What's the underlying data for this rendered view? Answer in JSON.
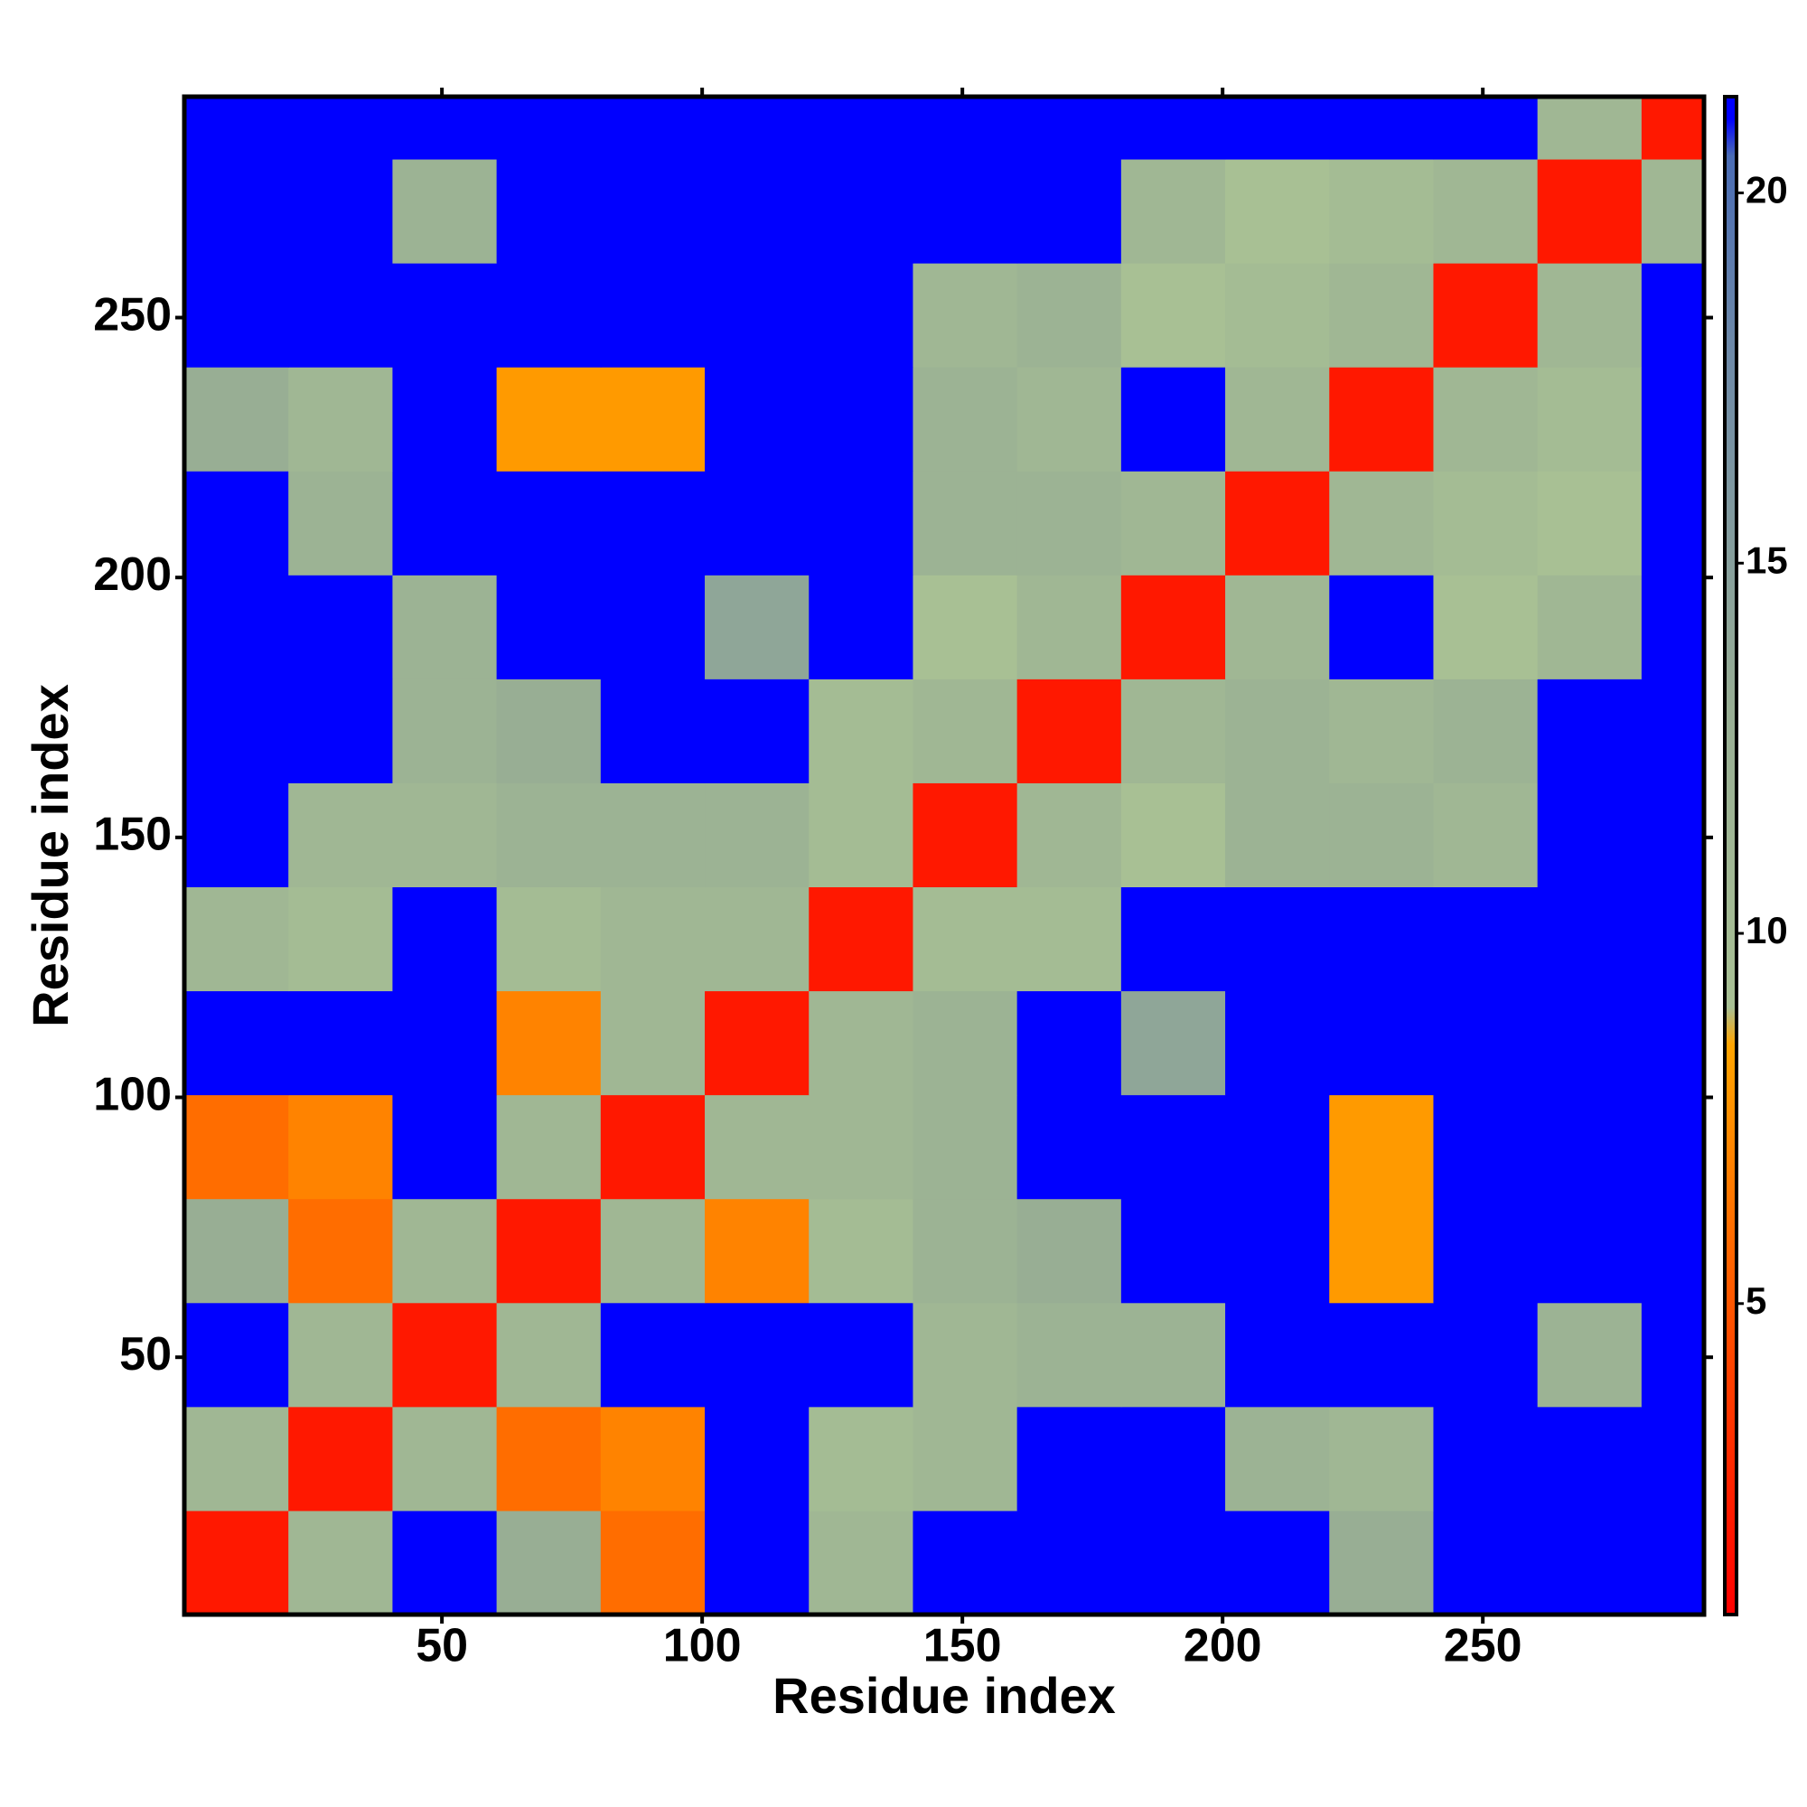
{
  "chart_data": {
    "type": "heatmap",
    "xlabel": "Residue index",
    "ylabel": "Residue index",
    "xbins": [
      0.5,
      20.5,
      40.5,
      60.5,
      80.5,
      100.5,
      120.5,
      140.5,
      160.5,
      180.5,
      200.5,
      220.5,
      240.5,
      260.5,
      280.5,
      292.5
    ],
    "ybins": [
      0.5,
      20.5,
      40.5,
      60.5,
      80.5,
      100.5,
      120.5,
      140.5,
      160.5,
      180.5,
      200.5,
      220.5,
      240.5,
      260.5,
      280.5,
      292.5
    ],
    "values": [
      [
        2,
        11,
        21,
        13,
        6,
        21,
        11,
        21,
        21,
        21,
        21,
        13,
        21,
        21,
        21
      ],
      [
        11,
        2,
        11,
        6,
        7,
        21,
        10,
        11,
        21,
        21,
        12,
        11,
        21,
        21,
        21
      ],
      [
        21,
        11,
        2,
        11,
        21,
        21,
        21,
        11,
        12,
        12,
        21,
        21,
        21,
        12,
        21
      ],
      [
        13,
        6,
        11,
        2,
        11,
        7,
        10,
        12,
        13,
        21,
        21,
        8,
        21,
        21,
        21
      ],
      [
        6,
        7,
        21,
        11,
        2,
        11,
        11,
        12,
        21,
        21,
        21,
        8,
        21,
        21,
        21
      ],
      [
        21,
        21,
        21,
        7,
        11,
        2,
        11,
        12,
        21,
        14,
        21,
        21,
        21,
        21,
        21
      ],
      [
        11,
        10,
        21,
        10,
        11,
        11,
        2,
        10,
        10,
        21,
        21,
        21,
        21,
        21,
        21
      ],
      [
        21,
        11,
        11,
        12,
        12,
        12,
        10,
        2,
        11,
        9,
        12,
        12,
        11,
        21,
        21
      ],
      [
        21,
        21,
        12,
        13,
        21,
        21,
        10,
        11,
        2,
        11,
        12,
        11,
        12,
        21,
        21
      ],
      [
        21,
        21,
        12,
        21,
        21,
        14,
        21,
        9,
        11,
        2,
        11,
        21,
        9,
        11,
        21
      ],
      [
        21,
        12,
        21,
        21,
        21,
        21,
        21,
        12,
        12,
        11,
        2,
        11,
        10,
        9,
        21
      ],
      [
        13,
        11,
        21,
        8,
        8,
        21,
        21,
        12,
        11,
        21,
        11,
        2,
        11,
        10,
        21
      ],
      [
        21,
        21,
        21,
        21,
        21,
        21,
        21,
        11,
        12,
        9,
        10,
        11,
        2,
        11,
        21
      ],
      [
        21,
        21,
        12,
        21,
        21,
        21,
        21,
        21,
        21,
        11,
        9,
        10,
        11,
        2,
        11
      ],
      [
        21,
        21,
        21,
        21,
        21,
        21,
        21,
        21,
        21,
        21,
        21,
        21,
        21,
        11,
        2
      ]
    ],
    "xlim": [
      0.5,
      292.5
    ],
    "ylim": [
      0.5,
      292.5
    ],
    "xticks": [
      50,
      100,
      150,
      200,
      250
    ],
    "yticks": [
      50,
      100,
      150,
      200,
      250
    ],
    "zlim": [
      0.8,
      21.3
    ],
    "zticks": [
      5,
      10,
      15,
      20
    ],
    "colorscale": [
      [
        0.8,
        "#ff0000"
      ],
      [
        4,
        "#ff4000"
      ],
      [
        8.5,
        "#ffa500"
      ],
      [
        9,
        "#a8c094"
      ],
      [
        13,
        "#98ae94"
      ],
      [
        18,
        "#6c88a8"
      ],
      [
        20.5,
        "#4a6cb4"
      ],
      [
        21,
        "#0000ff"
      ]
    ]
  }
}
